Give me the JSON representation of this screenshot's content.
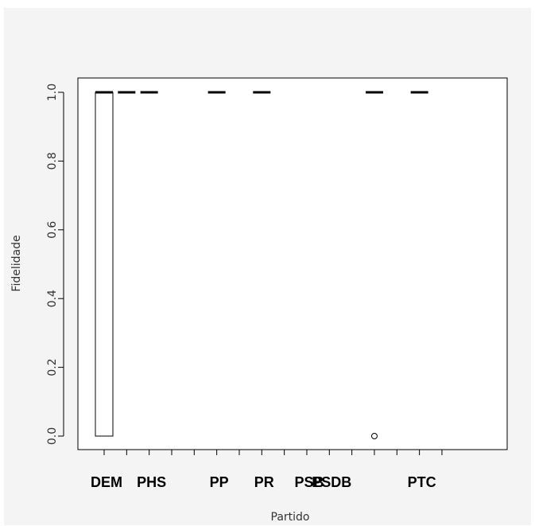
{
  "chart_data": {
    "type": "boxplot",
    "title": "",
    "xlabel": "Partido",
    "ylabel": "Fidelidade",
    "ylim": [
      0,
      1
    ],
    "yticks": [
      "0.0",
      "0.2",
      "0.4",
      "0.6",
      "0.8",
      "1.0"
    ],
    "categories": [
      "DEM",
      "",
      "PHS",
      "",
      "",
      "PP",
      "",
      "PR",
      "",
      "PSB",
      "PSDB",
      "",
      "",
      "",
      "PTC",
      ""
    ],
    "boxes": [
      {
        "category_index": 0,
        "q1": 0.0,
        "median": 1.0,
        "q3": 1.0
      },
      {
        "category_index": 1,
        "q1": 1.0,
        "median": 1.0,
        "q3": 1.0
      },
      {
        "category_index": 2,
        "q1": 1.0,
        "median": 1.0,
        "q3": 1.0
      },
      {
        "category_index": 5,
        "q1": 1.0,
        "median": 1.0,
        "q3": 1.0
      },
      {
        "category_index": 7,
        "q1": 1.0,
        "median": 1.0,
        "q3": 1.0
      },
      {
        "category_index": 12,
        "q1": 1.0,
        "median": 1.0,
        "q3": 1.0
      },
      {
        "category_index": 14,
        "q1": 1.0,
        "median": 1.0,
        "q3": 1.0
      }
    ],
    "outliers": [
      {
        "category_index": 12,
        "value": 0.0
      }
    ],
    "grid": false,
    "legend": "none"
  }
}
